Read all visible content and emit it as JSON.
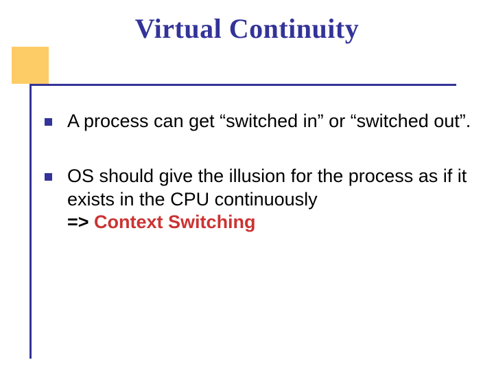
{
  "slide": {
    "title": "Virtual  Continuity",
    "title_color": "#333399",
    "accent_color": "#fecc66",
    "line_color": "#333399",
    "bullets": [
      {
        "text": "A process can get “switched in” or “switched out”.",
        "strong_color": "#cc3333",
        "prefix": "",
        "strong": ""
      },
      {
        "text": "OS should give the illusion for the process as if it exists in the CPU continuously",
        "prefix": "=> ",
        "strong": "Context Switching",
        "strong_color": "#cc3333"
      }
    ],
    "bullet_marker_color": "#333399",
    "body_font_size": 27,
    "title_font_size": 40
  }
}
